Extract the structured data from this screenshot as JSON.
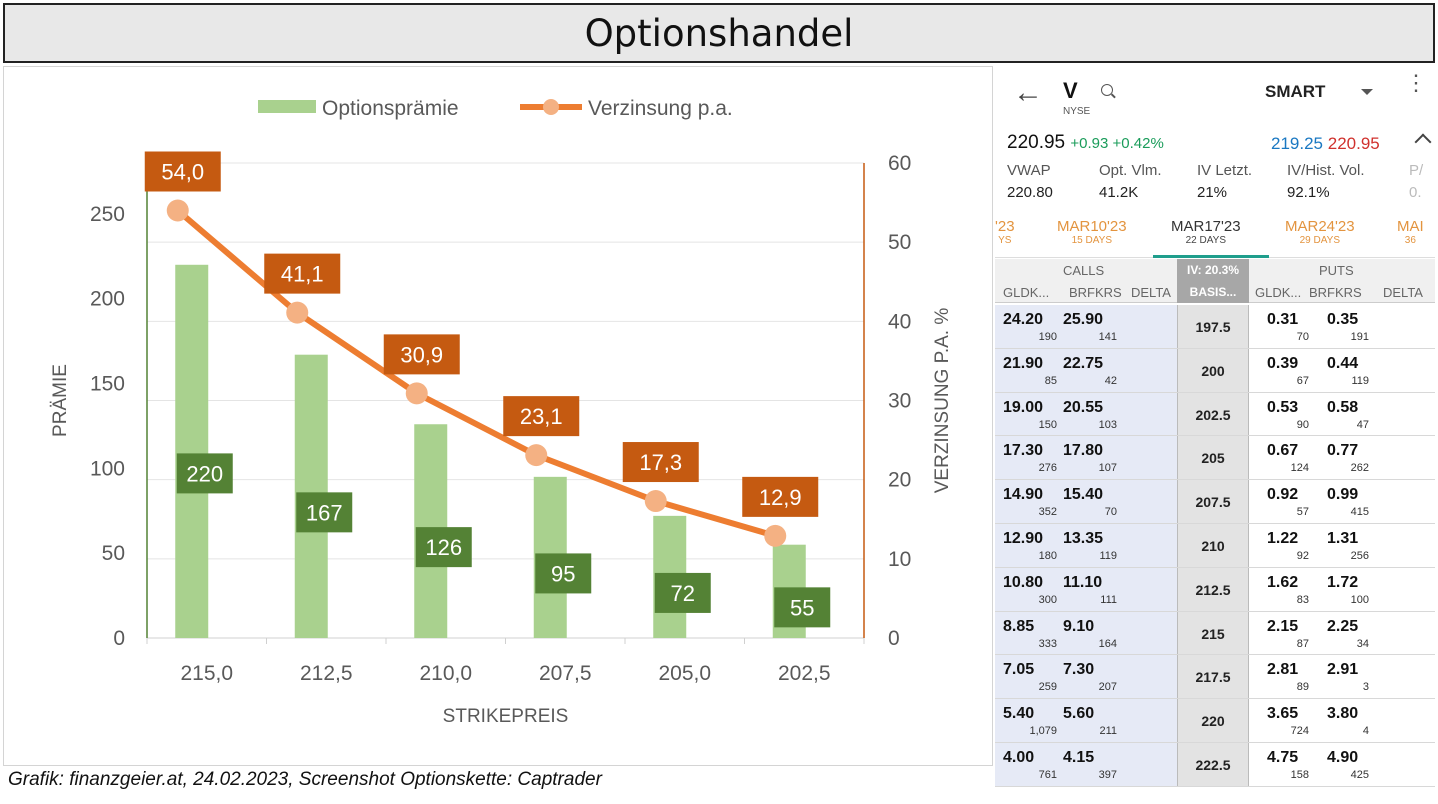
{
  "title": "Optionshandel",
  "source": "Grafik: finanzgeier.at, 24.02.2023, Screenshot Optionskette: Captrader",
  "chart_data": {
    "type": "bar",
    "categories": [
      "215,0",
      "212,5",
      "210,0",
      "207,5",
      "205,0",
      "202,5"
    ],
    "series": [
      {
        "name": "Optionsprämie",
        "type": "bar",
        "axis": "left",
        "values": [
          220,
          167,
          126,
          95,
          72,
          55
        ],
        "labels": [
          "220",
          "167",
          "126",
          "95",
          "72",
          "55"
        ],
        "color": "#a9d18e",
        "label_color": "#548235"
      },
      {
        "name": "Verzinsung p.a.",
        "type": "line",
        "axis": "right",
        "values": [
          54.0,
          41.1,
          30.9,
          23.1,
          17.3,
          12.9
        ],
        "labels": [
          "54,0",
          "41,1",
          "30,9",
          "23,1",
          "17,3",
          "12,9"
        ],
        "color": "#ed7d31",
        "marker_color": "#f4b183",
        "label_color": "#c55a11"
      }
    ],
    "xlabel": "STRIKEPREIS",
    "ylabel": "PRÄMIE",
    "y2label": "VERZINSUNG P.A. %",
    "ylim": [
      0,
      280
    ],
    "y2lim": [
      0,
      60
    ],
    "yticks": [
      0,
      50,
      100,
      150,
      200,
      250
    ],
    "y2ticks": [
      0,
      10,
      20,
      30,
      40,
      50,
      60
    ],
    "grid": true,
    "legend": "top"
  },
  "chain": {
    "back_icon": "arrow-left-icon",
    "symbol": "V",
    "exchange": "NYSE",
    "route": "SMART",
    "last": "220.95",
    "change": "+0.93 +0.42%",
    "bid": "219.25",
    "ask": "220.95",
    "stats": [
      {
        "label": "VWAP",
        "value": "220.80"
      },
      {
        "label": "Opt. Vlm.",
        "value": "41.2K"
      },
      {
        "label": "IV Letzt.",
        "value": "21%"
      },
      {
        "label": "IV/Hist. Vol.",
        "value": "92.1%"
      },
      {
        "label": "P/",
        "value": "0."
      }
    ],
    "expiries": [
      {
        "date": "'23",
        "days": "YS"
      },
      {
        "date": "MAR10'23",
        "days": "15 DAYS"
      },
      {
        "date": "MAR17'23",
        "days": "22 DAYS"
      },
      {
        "date": "MAR24'23",
        "days": "29 DAYS"
      },
      {
        "date": "MAI",
        "days": "36"
      }
    ],
    "calls_header": "CALLS",
    "puts_header": "PUTS",
    "iv": "IV: 20.3%",
    "basis": "BASIS...",
    "col_bid": "GLDK...",
    "col_ask": "BRFKRS",
    "col_delta": "DELTA",
    "col_bid2": "GLDK...",
    "col_ask2": "BRFKRS",
    "col_delta2": "DELTA",
    "rows": [
      {
        "strike": "197.5",
        "cb": "24.20",
        "cbs": "190",
        "ca": "25.90",
        "cas": "141",
        "pb": "0.31",
        "pbs": "70",
        "pa": "0.35",
        "pas": "191"
      },
      {
        "strike": "200",
        "cb": "21.90",
        "cbs": "85",
        "ca": "22.75",
        "cas": "42",
        "pb": "0.39",
        "pbs": "67",
        "pa": "0.44",
        "pas": "119"
      },
      {
        "strike": "202.5",
        "cb": "19.00",
        "cbs": "150",
        "ca": "20.55",
        "cas": "103",
        "pb": "0.53",
        "pbs": "90",
        "pa": "0.58",
        "pas": "47"
      },
      {
        "strike": "205",
        "cb": "17.30",
        "cbs": "276",
        "ca": "17.80",
        "cas": "107",
        "pb": "0.67",
        "pbs": "124",
        "pa": "0.77",
        "pas": "262"
      },
      {
        "strike": "207.5",
        "cb": "14.90",
        "cbs": "352",
        "ca": "15.40",
        "cas": "70",
        "pb": "0.92",
        "pbs": "57",
        "pa": "0.99",
        "pas": "415"
      },
      {
        "strike": "210",
        "cb": "12.90",
        "cbs": "180",
        "ca": "13.35",
        "cas": "119",
        "pb": "1.22",
        "pbs": "92",
        "pa": "1.31",
        "pas": "256"
      },
      {
        "strike": "212.5",
        "cb": "10.80",
        "cbs": "300",
        "ca": "11.10",
        "cas": "111",
        "pb": "1.62",
        "pbs": "83",
        "pa": "1.72",
        "pas": "100"
      },
      {
        "strike": "215",
        "cb": "8.85",
        "cbs": "333",
        "ca": "9.10",
        "cas": "164",
        "pb": "2.15",
        "pbs": "87",
        "pa": "2.25",
        "pas": "34"
      },
      {
        "strike": "217.5",
        "cb": "7.05",
        "cbs": "259",
        "ca": "7.30",
        "cas": "207",
        "pb": "2.81",
        "pbs": "89",
        "pa": "2.91",
        "pas": "3"
      },
      {
        "strike": "220",
        "cb": "5.40",
        "cbs": "1,079",
        "ca": "5.60",
        "cas": "211",
        "pb": "3.65",
        "pbs": "724",
        "pa": "3.80",
        "pas": "4"
      },
      {
        "strike": "222.5",
        "cb": "4.00",
        "cbs": "761",
        "ca": "4.15",
        "cas": "397",
        "pb": "4.75",
        "pbs": "158",
        "pa": "4.90",
        "pas": "425"
      }
    ]
  }
}
